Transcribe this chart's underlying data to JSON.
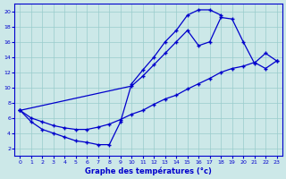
{
  "title": "Graphe des températures (°c)",
  "bg_color": "#cce8e8",
  "grid_color": "#99cccc",
  "line_color": "#0000cc",
  "xlim": [
    -0.5,
    23.5
  ],
  "ylim": [
    1.0,
    21.0
  ],
  "xtick_vals": [
    0,
    1,
    2,
    3,
    4,
    5,
    6,
    7,
    8,
    9,
    10,
    11,
    12,
    13,
    14,
    15,
    16,
    17,
    18,
    19,
    20,
    21,
    22,
    23
  ],
  "ytick_vals": [
    2,
    4,
    6,
    8,
    10,
    12,
    14,
    16,
    18,
    20
  ],
  "line1_x": [
    0,
    1,
    2,
    3,
    4,
    5,
    6,
    7,
    8,
    9,
    10,
    11,
    12,
    13,
    14,
    15,
    16,
    17,
    18
  ],
  "line1_y": [
    7.0,
    5.5,
    4.5,
    4.0,
    3.5,
    3.0,
    2.8,
    2.5,
    2.5,
    5.5,
    10.5,
    12.3,
    14.0,
    16.0,
    17.5,
    19.5,
    20.2,
    20.2,
    19.5
  ],
  "line2_x": [
    0,
    10,
    11,
    12,
    13,
    14,
    15,
    16,
    17,
    18,
    19,
    20,
    21,
    22,
    23
  ],
  "line2_y": [
    7.0,
    10.2,
    11.5,
    13.0,
    14.5,
    16.0,
    17.5,
    15.5,
    16.0,
    19.2,
    19.0,
    16.0,
    13.2,
    14.5,
    13.5
  ],
  "line3_x": [
    0,
    1,
    2,
    3,
    4,
    5,
    6,
    7,
    8,
    9,
    10,
    11,
    12,
    13,
    14,
    15,
    16,
    17,
    18,
    19,
    20,
    21,
    22,
    23
  ],
  "line3_y": [
    7.0,
    6.0,
    5.5,
    5.0,
    4.7,
    4.5,
    4.5,
    4.8,
    5.2,
    5.8,
    6.5,
    7.0,
    7.8,
    8.5,
    9.0,
    9.8,
    10.5,
    11.2,
    12.0,
    12.5,
    12.8,
    13.3,
    12.5,
    13.5
  ]
}
